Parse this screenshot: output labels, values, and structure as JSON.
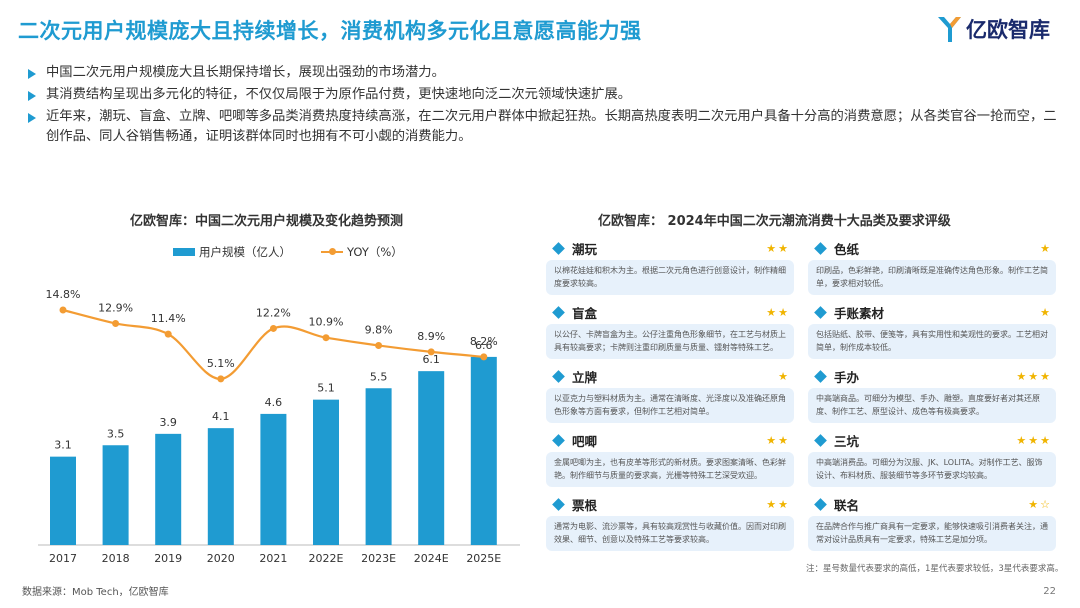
{
  "header": {
    "title": "二次元用户规模庞大且持续增长，消费机构多元化且意愿高能力强",
    "logo_text": "亿欧智库"
  },
  "bullets": [
    "中国二次元用户规模庞大且长期保持增长，展现出强劲的市场潜力。",
    "其消费结构呈现出多元化的特征，不仅仅局限于为原作品付费，更快速地向泛二次元领域快速扩展。",
    "近年来，潮玩、盲盒、立牌、吧唧等多品类消费热度持续高涨，在二次元用户群体中掀起狂热。长期高热度表明二次元用户具备十分高的消费意愿；从各类官谷一抢而空，二创作品、同人谷销售畅通，证明该群体同时也拥有不可小觑的消费能力。"
  ],
  "chart_data": {
    "type": "bar",
    "title": "亿欧智库：中国二次元用户规模及变化趋势预测",
    "categories": [
      "2017",
      "2018",
      "2019",
      "2020",
      "2021",
      "2022E",
      "2023E",
      "2024E",
      "2025E"
    ],
    "series": [
      {
        "name": "用户规模（亿人）",
        "type": "bar",
        "values": [
          3.1,
          3.5,
          3.9,
          4.1,
          4.6,
          5.1,
          5.5,
          6.1,
          6.6
        ],
        "labels": [
          "3.1",
          "3.5",
          "3.9",
          "4.1",
          "4.6",
          "5.1",
          "5.5",
          "6.1",
          "6.6"
        ]
      },
      {
        "name": "YOY（%）",
        "type": "line",
        "values": [
          14.8,
          12.9,
          11.4,
          5.1,
          12.2,
          10.9,
          9.8,
          8.9,
          8.2
        ],
        "labels": [
          "14.8%",
          "12.9%",
          "11.4%",
          "5.1%",
          "12.2%",
          "10.9%",
          "9.8%",
          "8.9%",
          "8.2%"
        ]
      }
    ],
    "colors": {
      "bar": "#1f9bd1",
      "line": "#f39c33"
    }
  },
  "source": "数据来源：Mob Tech，亿欧智库",
  "right_panel": {
    "title": "亿欧智库： 2024年中国二次元潮流消费十大品类及要求评级",
    "items": [
      {
        "name": "潮玩",
        "stars": "★★",
        "desc": "以棉花娃娃和积木为主。根据二次元角色进行创意设计，制作精细度要求较高。"
      },
      {
        "name": "色纸",
        "stars": "★",
        "desc": "印刷品，色彩鲜艳，印刷清晰既是准确传达角色形象。制作工艺简单，要求相对较低。"
      },
      {
        "name": "盲盒",
        "stars": "★★",
        "desc": "以公仔、卡牌盲盒为主。公仔注重角色形象细节，在工艺与材质上具有较高要求；卡牌则注重印刷质量与质量、镭射等特殊工艺。"
      },
      {
        "name": "手账素材",
        "stars": "★",
        "desc": "包括贴纸、胶带、便笺等，具有实用性和美观性的要求。工艺相对简单，制作成本较低。"
      },
      {
        "name": "立牌",
        "stars": "★",
        "desc": "以亚克力与塑料材质为主。通常在清晰度、光泽度以及准确还原角色形象等方面有要求，但制作工艺相对简单。"
      },
      {
        "name": "手办",
        "stars": "★★★",
        "desc": "中高端商品。可细分为模型、手办、雕塑。直度要好者对其还原度、制作工艺、原型设计、成色等有极高要求。"
      },
      {
        "name": "吧唧",
        "stars": "★★",
        "desc": "金属吧唧为主，也有皮革等形式的新材质。要求图案清晰、色彩鲜艳。制作细节与质量的要求高，光栅等特殊工艺深受欢迎。"
      },
      {
        "name": "三坑",
        "stars": "★★★",
        "desc": "中高端消费品。可细分为汉服、JK、LOLITA。对制作工艺、服饰设计、布料材质、服装细节等多环节要求均较高。"
      },
      {
        "name": "票根",
        "stars": "★★",
        "desc": "通常为电影、流沙票等，具有较高观赏性与收藏价值。因而对印刷效果、细节、创意以及特殊工艺等要求较高。"
      },
      {
        "name": "联名",
        "stars": "★☆",
        "desc": "在品牌合作与推广商具有一定要求，能够快速吸引消费者关注，通常对设计品质具有一定要求，特殊工艺是加分项。"
      }
    ],
    "note": "注：星号数量代表要求的高低，1星代表要求较低，3星代表要求高。"
  },
  "page_number": "22"
}
